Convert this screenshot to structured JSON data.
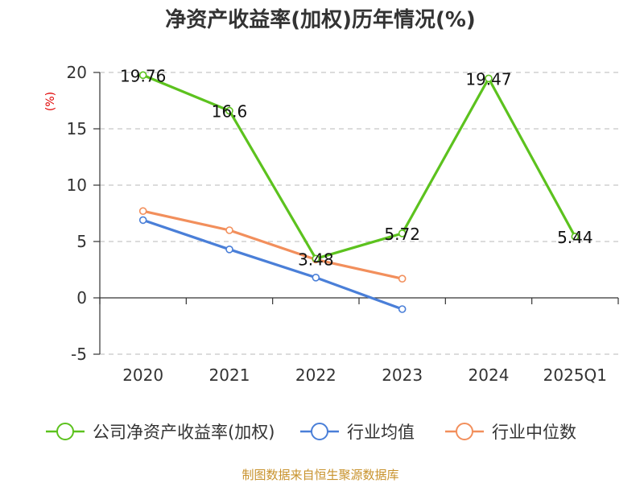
{
  "title": "净资产收益率(加权)历年情况(%)",
  "source_text": "制图数据来自恒生聚源数据库",
  "chart_data": {
    "type": "line",
    "title": "净资产收益率(加权)历年情况(%)",
    "ylabel": "(%)",
    "categories": [
      "2020",
      "2021",
      "2022",
      "2023",
      "2024",
      "2025Q1"
    ],
    "ylim": [
      -5,
      20
    ],
    "yticks": [
      20,
      15,
      10,
      5,
      0,
      -5
    ],
    "grid": true,
    "legend_position": "bottom",
    "series": [
      {
        "name": "公司净资产收益率(加权)",
        "color": "#5cc21e",
        "values": [
          19.76,
          16.6,
          3.48,
          5.72,
          19.47,
          5.44
        ],
        "data_labels": [
          "19.76",
          "16.6",
          "3.48",
          "5.72",
          "19.47",
          "5.44"
        ]
      },
      {
        "name": "行业均值",
        "color": "#4a7fd8",
        "values": [
          6.9,
          4.3,
          1.8,
          -1.0,
          null,
          null
        ],
        "data_labels": []
      },
      {
        "name": "行业中位数",
        "color": "#f28f5c",
        "values": [
          7.7,
          6.0,
          3.4,
          1.7,
          null,
          null
        ],
        "data_labels": []
      }
    ]
  }
}
